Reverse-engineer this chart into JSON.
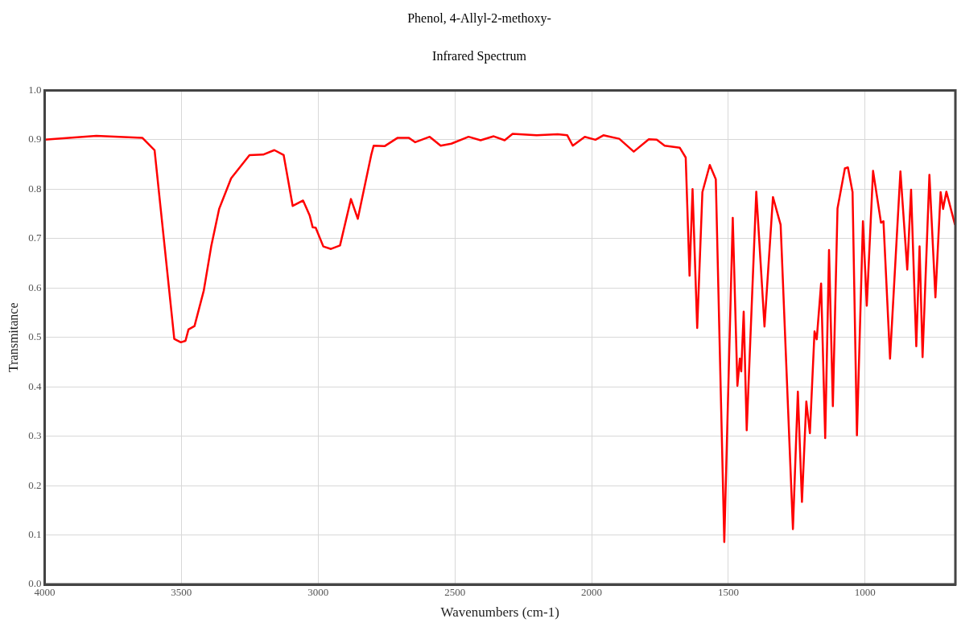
{
  "chart_data": {
    "type": "line",
    "title": "Phenol, 4-Allyl-2-methoxy-",
    "subtitle": "Infrared Spectrum",
    "xlabel": "Wavenumbers (cm-1)",
    "ylabel": "Transmitance",
    "x": [
      4000,
      3811,
      3643,
      3598,
      3526,
      3502,
      3485,
      3474,
      3452,
      3418,
      3391,
      3362,
      3318,
      3251,
      3201,
      3160,
      3126,
      3093,
      3055,
      3031,
      3020,
      3009,
      2981,
      2953,
      2920,
      2880,
      2855,
      2806,
      2797,
      2757,
      2709,
      2669,
      2645,
      2592,
      2552,
      2513,
      2450,
      2406,
      2358,
      2318,
      2289,
      2201,
      2124,
      2089,
      2069,
      2025,
      1986,
      1957,
      1899,
      1846,
      1791,
      1762,
      1733,
      1678,
      1656,
      1642,
      1631,
      1614,
      1595,
      1568,
      1546,
      1515,
      1484,
      1467,
      1458,
      1453,
      1444,
      1433,
      1398,
      1368,
      1337,
      1309,
      1264,
      1246,
      1231,
      1215,
      1202,
      1185,
      1177,
      1161,
      1146,
      1132,
      1118,
      1101,
      1074,
      1063,
      1046,
      1030,
      1008,
      994,
      971,
      942,
      933,
      909,
      871,
      846,
      832,
      813,
      801,
      790,
      765,
      743,
      724,
      715,
      703,
      672
    ],
    "series": [
      {
        "color": "#ff0000",
        "values": [
          0.9,
          0.908,
          0.904,
          0.879,
          0.497,
          0.49,
          0.493,
          0.516,
          0.523,
          0.595,
          0.684,
          0.76,
          0.822,
          0.869,
          0.87,
          0.879,
          0.869,
          0.766,
          0.777,
          0.747,
          0.723,
          0.722,
          0.684,
          0.679,
          0.686,
          0.78,
          0.74,
          0.869,
          0.888,
          0.887,
          0.904,
          0.904,
          0.895,
          0.906,
          0.888,
          0.892,
          0.906,
          0.899,
          0.907,
          0.899,
          0.912,
          0.909,
          0.911,
          0.909,
          0.888,
          0.906,
          0.9,
          0.909,
          0.902,
          0.876,
          0.901,
          0.9,
          0.888,
          0.884,
          0.864,
          0.625,
          0.8,
          0.519,
          0.794,
          0.849,
          0.82,
          0.086,
          0.742,
          0.402,
          0.457,
          0.431,
          0.552,
          0.312,
          0.795,
          0.522,
          0.784,
          0.728,
          0.112,
          0.39,
          0.167,
          0.37,
          0.306,
          0.512,
          0.496,
          0.609,
          0.296,
          0.677,
          0.361,
          0.761,
          0.842,
          0.844,
          0.794,
          0.302,
          0.735,
          0.564,
          0.837,
          0.732,
          0.735,
          0.457,
          0.836,
          0.637,
          0.799,
          0.482,
          0.684,
          0.46,
          0.829,
          0.581,
          0.794,
          0.76,
          0.795,
          0.729
        ]
      }
    ],
    "xlim": [
      4000,
      670
    ],
    "xticks": [
      4000,
      3500,
      3000,
      2500,
      2000,
      1500,
      1000
    ],
    "ylim": [
      0,
      1
    ],
    "yticks": [
      {
        "value": 0,
        "label": "0.0"
      },
      0.1,
      0.2,
      0.3,
      0.4,
      0.5,
      0.6,
      0.7,
      0.8,
      0.9,
      {
        "value": 1,
        "label": "1.0"
      }
    ],
    "grid": true,
    "line_style": "solid"
  }
}
